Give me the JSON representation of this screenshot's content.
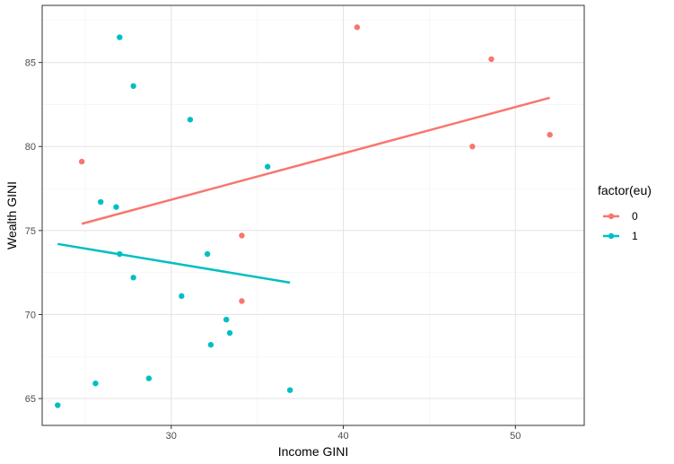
{
  "chart_data": {
    "type": "scatter",
    "xlabel": "Income GINI",
    "ylabel": "Wealth GINI",
    "xlim": [
      22.5,
      54
    ],
    "ylim": [
      63.4,
      88.4
    ],
    "x_ticks": [
      30,
      40,
      50
    ],
    "y_ticks": [
      65,
      70,
      75,
      80,
      85
    ],
    "x_tick_labels": [
      "30",
      "40",
      "50"
    ],
    "y_tick_labels": [
      "65",
      "70",
      "75",
      "80",
      "85"
    ],
    "grid": true,
    "legend": {
      "title": "factor(eu)",
      "placement": "right",
      "entries": [
        "0",
        "1"
      ]
    },
    "series": [
      {
        "name": "0",
        "color": "#F8766D",
        "points": [
          {
            "x": 24.8,
            "y": 79.1
          },
          {
            "x": 34.1,
            "y": 74.7
          },
          {
            "x": 34.1,
            "y": 70.8
          },
          {
            "x": 40.8,
            "y": 87.1
          },
          {
            "x": 47.5,
            "y": 80.0
          },
          {
            "x": 48.6,
            "y": 85.2
          },
          {
            "x": 52.0,
            "y": 80.7
          }
        ],
        "fit": {
          "x": [
            24.8,
            52.0
          ],
          "y": [
            75.4,
            82.9
          ]
        }
      },
      {
        "name": "1",
        "color": "#00BFC4",
        "points": [
          {
            "x": 23.4,
            "y": 64.6
          },
          {
            "x": 25.6,
            "y": 65.9
          },
          {
            "x": 25.9,
            "y": 76.7
          },
          {
            "x": 26.8,
            "y": 76.4
          },
          {
            "x": 27.0,
            "y": 86.5
          },
          {
            "x": 27.0,
            "y": 73.6
          },
          {
            "x": 27.8,
            "y": 83.6
          },
          {
            "x": 27.8,
            "y": 72.2
          },
          {
            "x": 28.7,
            "y": 66.2
          },
          {
            "x": 30.6,
            "y": 71.1
          },
          {
            "x": 31.1,
            "y": 81.6
          },
          {
            "x": 32.1,
            "y": 73.6
          },
          {
            "x": 32.3,
            "y": 68.2
          },
          {
            "x": 33.2,
            "y": 69.7
          },
          {
            "x": 33.4,
            "y": 68.9
          },
          {
            "x": 35.6,
            "y": 78.8
          },
          {
            "x": 36.9,
            "y": 65.5
          }
        ],
        "fit": {
          "x": [
            23.4,
            36.9
          ],
          "y": [
            74.2,
            71.9
          ]
        }
      }
    ]
  }
}
